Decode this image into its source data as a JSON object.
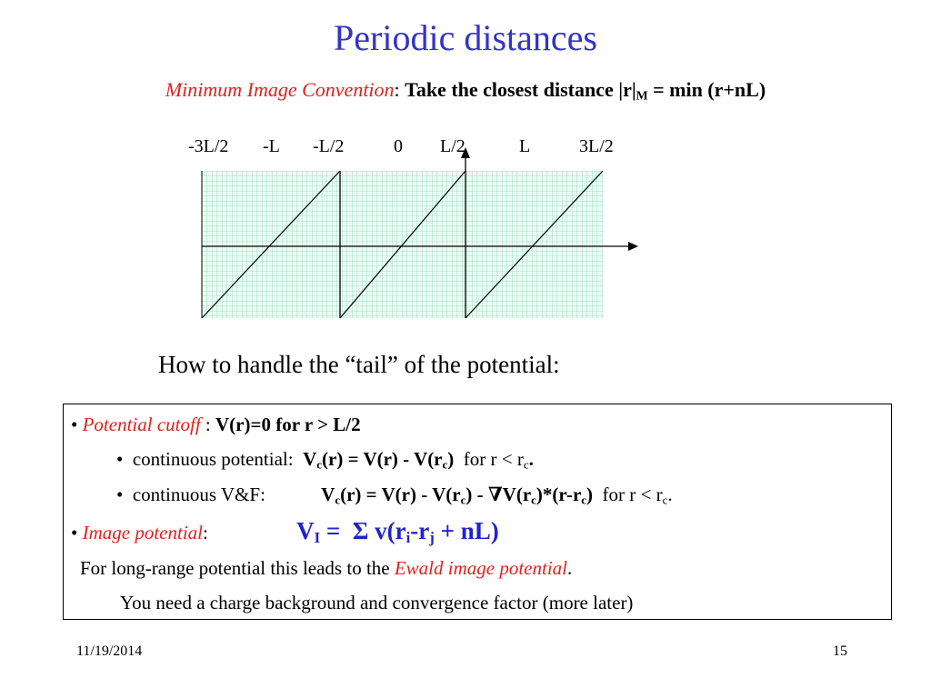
{
  "slide": {
    "title": "Periodic distances",
    "subtitle": {
      "convention_name": "Minimum Image Convention",
      "colon": ":",
      "rule_text": "Take the closest distance",
      "formula_lhs": "|r|",
      "formula_sub": "M",
      "formula_rhs": "= min (r+nL)"
    },
    "axis_ticks": [
      "-3L/2",
      "-L",
      "-L/2",
      "0",
      "L/2",
      "L",
      "3L/2"
    ],
    "tail_heading": "How to handle the “tail” of the potential:",
    "box": {
      "bullet": "•",
      "cutoff_label": "Potential cutoff",
      "cutoff_sep": " :",
      "cutoff_rule": "V(r)=0 for r > L/2",
      "cont_pot_label": "continuous potential:",
      "cont_pot_formula": "V(r) = V(r) - V(r )",
      "cont_pot_cond": "for r < r .",
      "cont_vf_label": "continuous V&F:",
      "cont_vf_formula": "V(r) = V(r) - V(r ) - ∇V(r )*(r-r )",
      "cont_vf_cond": "for r < r .",
      "image_label": "Image potential",
      "image_colon": ":",
      "image_formula": "V = Σ v(r -r + nL)",
      "ewald_prefix": "For long-range potential this leads to the",
      "ewald_name": "Ewald image potential",
      "ewald_suffix": ".",
      "background_note": "You need a charge background and convergence factor (more later)"
    },
    "footer": {
      "date": "11/19/2014",
      "page": "15"
    }
  },
  "colors": {
    "title": "#3333cc",
    "emphasis_red": "#e0201b",
    "formula_blue": "#2222cc",
    "grid": "#7fd1b0"
  }
}
